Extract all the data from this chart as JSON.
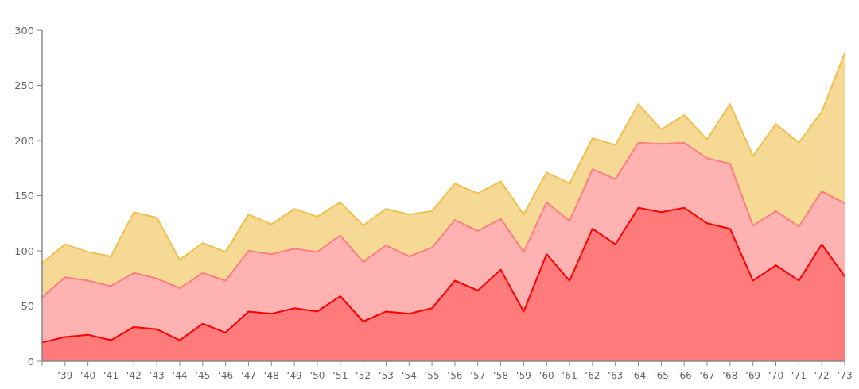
{
  "chart_data": {
    "type": "area",
    "stacked": true,
    "categories": [
      null,
      "‘39",
      "‘40",
      "‘41",
      "‘42",
      "‘43",
      "‘44",
      "‘45",
      "‘46",
      "‘47",
      "‘48",
      "‘49",
      "‘50",
      "‘51",
      "‘52",
      "‘53",
      "‘54",
      "‘55",
      "‘56",
      "‘57",
      "‘58",
      "‘59",
      "‘60",
      "‘61",
      "‘62",
      "‘63",
      "‘64",
      "‘65",
      "‘66",
      "‘67",
      "‘68",
      "‘69",
      "‘70",
      "‘71",
      "‘72",
      "‘73"
    ],
    "series": [
      {
        "color": "#ff0000",
        "values": [
          17,
          22,
          24,
          19,
          31,
          29,
          19,
          34,
          26,
          45,
          43,
          48,
          45,
          59,
          36,
          45,
          43,
          48,
          73,
          64,
          83,
          45,
          97,
          73,
          120,
          106,
          139,
          135,
          139,
          125,
          120,
          73,
          87,
          73,
          106,
          77
        ]
      },
      {
        "color": "#ff7f7f",
        "values": [
          41,
          54,
          49,
          49,
          49,
          46,
          47,
          46,
          47,
          55,
          54,
          54,
          54,
          55,
          54,
          60,
          52,
          55,
          55,
          54,
          46,
          54,
          47,
          54,
          54,
          59,
          59,
          62,
          59,
          59,
          59,
          50,
          49,
          49,
          48,
          66
        ]
      },
      {
        "color": "#f0c04c",
        "values": [
          31,
          30,
          26,
          27,
          55,
          55,
          26,
          27,
          26,
          33,
          27,
          36,
          32,
          30,
          33,
          33,
          38,
          33,
          33,
          34,
          34,
          34,
          27,
          34,
          28,
          31,
          35,
          13,
          25,
          17,
          54,
          63,
          79,
          76,
          72,
          136
        ]
      }
    ],
    "ylim": [
      0,
      300
    ],
    "yticks": [
      0,
      50,
      100,
      150,
      200,
      250,
      300
    ],
    "grid": false
  }
}
